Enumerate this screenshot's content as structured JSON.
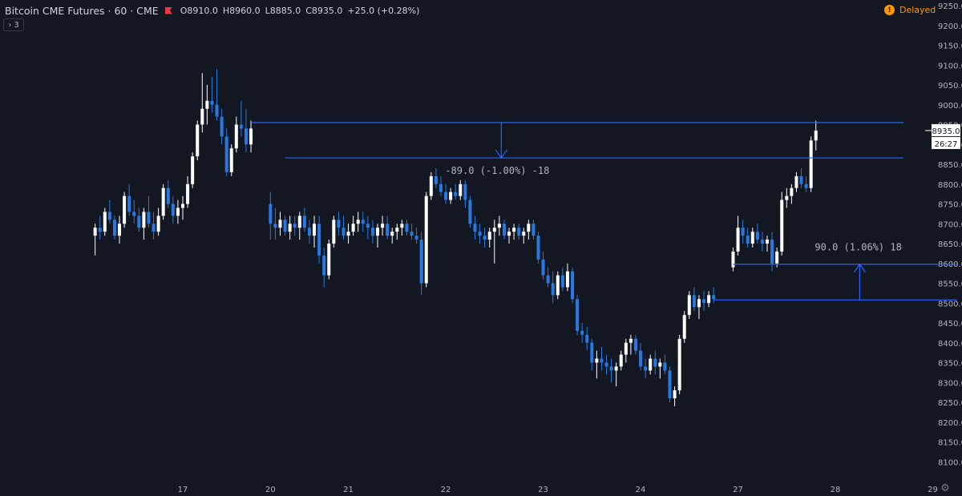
{
  "header": {
    "symbol": "Bitcoin CME Futures · 60 · CME",
    "open": "O8910.0",
    "high": "H8960.0",
    "low": "L8885.0",
    "close": "C8935.0",
    "change": "+25.0 (+0.28%)",
    "indicator_toggle": "3",
    "delayed_label": "Delayed"
  },
  "colors": {
    "background": "#131722",
    "up": "#ffffff",
    "down": "#2679e0",
    "drawing": "#2962ff",
    "text": "#b2b5be"
  },
  "chart_data": {
    "type": "candlestick",
    "title": "Bitcoin CME Futures · 60 · CME",
    "ylim": [
      8050,
      9250
    ],
    "y_ticks": [
      8100,
      8150,
      8200,
      8250,
      8300,
      8350,
      8400,
      8450,
      8500,
      8550,
      8600,
      8650,
      8700,
      8750,
      8800,
      8850,
      8900,
      8950,
      9000,
      9050,
      9100,
      9150,
      9200,
      9250
    ],
    "x_ticks": [
      "17",
      "20",
      "21",
      "22",
      "23",
      "24",
      "27",
      "28",
      "29"
    ],
    "x_tick_positions": [
      0,
      0.9,
      1.7,
      2.7,
      3.7,
      4.7,
      5.7,
      6.7,
      7.7
    ],
    "last_price": "8935.0",
    "countdown": "26:27",
    "candles": [
      [
        -0.9,
        8670,
        8700,
        8620,
        8690
      ],
      [
        -0.85,
        8690,
        8720,
        8660,
        8680
      ],
      [
        -0.8,
        8680,
        8740,
        8670,
        8730
      ],
      [
        -0.75,
        8730,
        8760,
        8700,
        8710
      ],
      [
        -0.7,
        8710,
        8720,
        8660,
        8670
      ],
      [
        -0.65,
        8670,
        8720,
        8650,
        8700
      ],
      [
        -0.6,
        8700,
        8780,
        8690,
        8770
      ],
      [
        -0.55,
        8770,
        8800,
        8720,
        8730
      ],
      [
        -0.5,
        8730,
        8760,
        8700,
        8720
      ],
      [
        -0.45,
        8720,
        8740,
        8680,
        8690
      ],
      [
        -0.4,
        8690,
        8740,
        8660,
        8730
      ],
      [
        -0.35,
        8730,
        8770,
        8690,
        8700
      ],
      [
        -0.3,
        8700,
        8730,
        8660,
        8680
      ],
      [
        -0.25,
        8680,
        8740,
        8670,
        8720
      ],
      [
        -0.2,
        8720,
        8800,
        8710,
        8790
      ],
      [
        -0.15,
        8790,
        8810,
        8740,
        8750
      ],
      [
        -0.1,
        8750,
        8770,
        8700,
        8720
      ],
      [
        -0.05,
        8720,
        8760,
        8700,
        8740
      ],
      [
        0.0,
        8740,
        8770,
        8710,
        8750
      ],
      [
        0.05,
        8750,
        8820,
        8740,
        8800
      ],
      [
        0.1,
        8800,
        8880,
        8790,
        8870
      ],
      [
        0.15,
        8870,
        8960,
        8860,
        8950
      ],
      [
        0.2,
        8950,
        9080,
        8930,
        8990
      ],
      [
        0.25,
        8990,
        9050,
        8950,
        9010
      ],
      [
        0.3,
        9010,
        9070,
        8980,
        9000
      ],
      [
        0.35,
        9000,
        9090,
        8960,
        8970
      ],
      [
        0.4,
        8970,
        8990,
        8900,
        8920
      ],
      [
        0.45,
        8920,
        8940,
        8820,
        8830
      ],
      [
        0.5,
        8830,
        8900,
        8820,
        8890
      ],
      [
        0.55,
        8890,
        8970,
        8880,
        8950
      ],
      [
        0.6,
        8950,
        9010,
        8920,
        8940
      ],
      [
        0.65,
        8940,
        8990,
        8880,
        8900
      ],
      [
        0.7,
        8900,
        8960,
        8880,
        8940
      ],
      [
        0.9,
        8750,
        8780,
        8660,
        8700
      ],
      [
        0.95,
        8700,
        8740,
        8660,
        8690
      ],
      [
        1.0,
        8690,
        8730,
        8670,
        8710
      ],
      [
        1.05,
        8710,
        8720,
        8670,
        8680
      ],
      [
        1.1,
        8680,
        8720,
        8660,
        8700
      ],
      [
        1.15,
        8700,
        8720,
        8670,
        8690
      ],
      [
        1.2,
        8690,
        8730,
        8660,
        8720
      ],
      [
        1.25,
        8720,
        8740,
        8680,
        8690
      ],
      [
        1.3,
        8690,
        8710,
        8650,
        8670
      ],
      [
        1.35,
        8670,
        8720,
        8640,
        8700
      ],
      [
        1.4,
        8700,
        8720,
        8600,
        8620
      ],
      [
        1.45,
        8620,
        8640,
        8540,
        8570
      ],
      [
        1.5,
        8570,
        8660,
        8560,
        8650
      ],
      [
        1.55,
        8650,
        8720,
        8640,
        8710
      ],
      [
        1.6,
        8710,
        8730,
        8670,
        8690
      ],
      [
        1.65,
        8690,
        8720,
        8660,
        8670
      ],
      [
        1.7,
        8670,
        8700,
        8650,
        8680
      ],
      [
        1.75,
        8680,
        8720,
        8670,
        8700
      ],
      [
        1.8,
        8700,
        8730,
        8680,
        8710
      ],
      [
        1.85,
        8710,
        8730,
        8680,
        8700
      ],
      [
        1.9,
        8700,
        8720,
        8660,
        8690
      ],
      [
        1.95,
        8690,
        8710,
        8650,
        8670
      ],
      [
        2.0,
        8670,
        8700,
        8640,
        8690
      ],
      [
        2.05,
        8690,
        8720,
        8670,
        8700
      ],
      [
        2.1,
        8700,
        8720,
        8660,
        8670
      ],
      [
        2.15,
        8670,
        8690,
        8650,
        8680
      ],
      [
        2.2,
        8680,
        8700,
        8660,
        8690
      ],
      [
        2.25,
        8690,
        8710,
        8670,
        8700
      ],
      [
        2.3,
        8700,
        8710,
        8670,
        8680
      ],
      [
        2.35,
        8680,
        8700,
        8660,
        8670
      ],
      [
        2.4,
        8670,
        8690,
        8650,
        8660
      ],
      [
        2.45,
        8660,
        8680,
        8520,
        8550
      ],
      [
        2.5,
        8550,
        8780,
        8540,
        8770
      ],
      [
        2.55,
        8770,
        8830,
        8760,
        8820
      ],
      [
        2.6,
        8820,
        8840,
        8790,
        8800
      ],
      [
        2.65,
        8800,
        8820,
        8770,
        8780
      ],
      [
        2.7,
        8780,
        8800,
        8750,
        8760
      ],
      [
        2.75,
        8760,
        8790,
        8750,
        8780
      ],
      [
        2.8,
        8780,
        8800,
        8760,
        8770
      ],
      [
        2.85,
        8770,
        8810,
        8760,
        8800
      ],
      [
        2.9,
        8800,
        8810,
        8740,
        8760
      ],
      [
        2.95,
        8760,
        8770,
        8690,
        8700
      ],
      [
        3.0,
        8700,
        8720,
        8660,
        8680
      ],
      [
        3.05,
        8680,
        8700,
        8650,
        8670
      ],
      [
        3.1,
        8670,
        8690,
        8640,
        8660
      ],
      [
        3.15,
        8660,
        8690,
        8640,
        8680
      ],
      [
        3.2,
        8680,
        8710,
        8600,
        8690
      ],
      [
        3.25,
        8690,
        8720,
        8670,
        8700
      ],
      [
        3.3,
        8700,
        8710,
        8660,
        8670
      ],
      [
        3.35,
        8670,
        8690,
        8650,
        8680
      ],
      [
        3.4,
        8680,
        8700,
        8660,
        8690
      ],
      [
        3.45,
        8690,
        8700,
        8660,
        8670
      ],
      [
        3.5,
        8670,
        8690,
        8650,
        8680
      ],
      [
        3.55,
        8680,
        8710,
        8660,
        8700
      ],
      [
        3.6,
        8700,
        8710,
        8660,
        8670
      ],
      [
        3.65,
        8670,
        8680,
        8600,
        8610
      ],
      [
        3.7,
        8610,
        8630,
        8560,
        8570
      ],
      [
        3.75,
        8570,
        8590,
        8540,
        8550
      ],
      [
        3.8,
        8550,
        8580,
        8500,
        8520
      ],
      [
        3.85,
        8520,
        8580,
        8510,
        8570
      ],
      [
        3.9,
        8570,
        8590,
        8530,
        8540
      ],
      [
        3.95,
        8540,
        8600,
        8530,
        8580
      ],
      [
        4.0,
        8580,
        8590,
        8500,
        8510
      ],
      [
        4.05,
        8510,
        8520,
        8420,
        8430
      ],
      [
        4.1,
        8430,
        8450,
        8400,
        8420
      ],
      [
        4.15,
        8420,
        8440,
        8380,
        8400
      ],
      [
        4.2,
        8400,
        8410,
        8330,
        8350
      ],
      [
        4.25,
        8350,
        8380,
        8310,
        8360
      ],
      [
        4.3,
        8360,
        8390,
        8330,
        8350
      ],
      [
        4.35,
        8350,
        8370,
        8320,
        8340
      ],
      [
        4.4,
        8340,
        8360,
        8300,
        8330
      ],
      [
        4.45,
        8330,
        8350,
        8290,
        8340
      ],
      [
        4.5,
        8340,
        8380,
        8330,
        8370
      ],
      [
        4.55,
        8370,
        8410,
        8350,
        8400
      ],
      [
        4.6,
        8400,
        8420,
        8370,
        8410
      ],
      [
        4.65,
        8410,
        8420,
        8370,
        8380
      ],
      [
        4.7,
        8380,
        8400,
        8330,
        8340
      ],
      [
        4.75,
        8340,
        8360,
        8310,
        8330
      ],
      [
        4.8,
        8330,
        8370,
        8320,
        8360
      ],
      [
        4.85,
        8360,
        8380,
        8320,
        8340
      ],
      [
        4.9,
        8340,
        8360,
        8310,
        8350
      ],
      [
        4.95,
        8350,
        8370,
        8320,
        8330
      ],
      [
        5.0,
        8330,
        8340,
        8250,
        8260
      ],
      [
        5.05,
        8260,
        8290,
        8240,
        8280
      ],
      [
        5.1,
        8280,
        8420,
        8270,
        8410
      ],
      [
        5.15,
        8410,
        8480,
        8400,
        8470
      ],
      [
        5.2,
        8470,
        8530,
        8460,
        8520
      ],
      [
        5.25,
        8520,
        8540,
        8480,
        8490
      ],
      [
        5.3,
        8490,
        8520,
        8460,
        8510
      ],
      [
        5.35,
        8510,
        8530,
        8480,
        8500
      ],
      [
        5.4,
        8500,
        8530,
        8490,
        8520
      ],
      [
        5.45,
        8520,
        8540,
        8500,
        8510
      ],
      [
        5.65,
        8590,
        8640,
        8580,
        8630
      ],
      [
        5.7,
        8630,
        8720,
        8620,
        8690
      ],
      [
        5.75,
        8690,
        8710,
        8650,
        8670
      ],
      [
        5.8,
        8670,
        8690,
        8640,
        8650
      ],
      [
        5.85,
        8650,
        8690,
        8640,
        8680
      ],
      [
        5.9,
        8680,
        8700,
        8650,
        8660
      ],
      [
        5.95,
        8660,
        8680,
        8630,
        8650
      ],
      [
        6.0,
        8650,
        8670,
        8630,
        8660
      ],
      [
        6.05,
        8660,
        8680,
        8580,
        8600
      ],
      [
        6.1,
        8600,
        8640,
        8590,
        8630
      ],
      [
        6.15,
        8630,
        8780,
        8620,
        8760
      ],
      [
        6.2,
        8760,
        8790,
        8740,
        8770
      ],
      [
        6.25,
        8770,
        8800,
        8750,
        8790
      ],
      [
        6.3,
        8790,
        8830,
        8780,
        8820
      ],
      [
        6.35,
        8820,
        8840,
        8790,
        8800
      ],
      [
        6.4,
        8800,
        8820,
        8780,
        8790
      ],
      [
        6.45,
        8790,
        8920,
        8780,
        8910
      ],
      [
        6.5,
        8910,
        8960,
        8885,
        8935
      ]
    ],
    "drawings": [
      {
        "type": "hline",
        "price": 8955,
        "x_start": 0.7,
        "x_end": 7.4
      },
      {
        "type": "hline",
        "price": 8866,
        "x_start": 1.05,
        "x_end": 7.4
      },
      {
        "type": "price_range",
        "from": 8955,
        "to": 8866,
        "x": 3.27,
        "label": "-89.0 (-1.00%) -18"
      },
      {
        "type": "hline",
        "price": 8598,
        "x_start": 5.65,
        "x_end": 7.95
      },
      {
        "type": "hline",
        "price": 8508,
        "x_start": 5.45,
        "x_end": 7.95
      },
      {
        "type": "price_range",
        "from": 8508,
        "to": 8598,
        "x": 6.95,
        "label": "90.0 (1.06%) 18"
      }
    ]
  }
}
